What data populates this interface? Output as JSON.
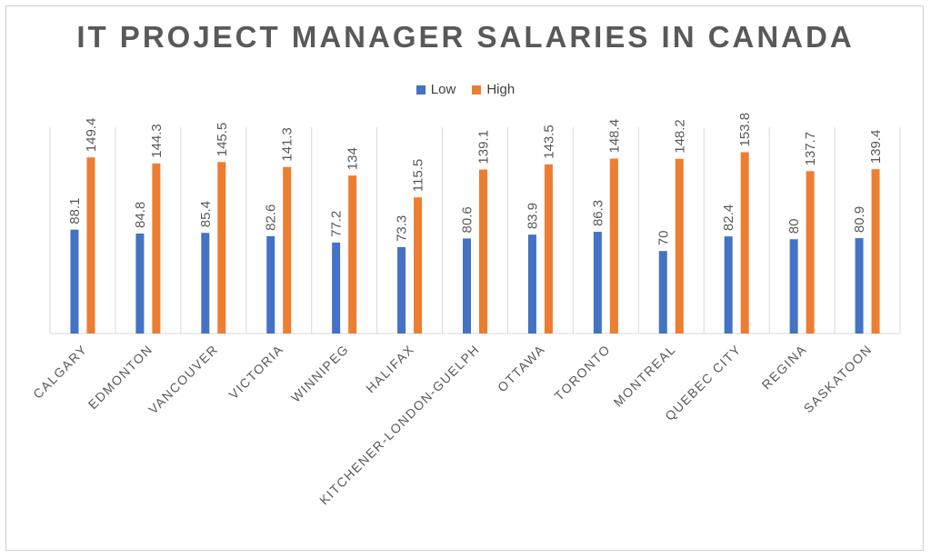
{
  "colors": {
    "low": "#4472C4",
    "high": "#ED7D31",
    "grid": "#d9d9d9",
    "text": "#595959"
  },
  "chart_data": {
    "type": "bar",
    "title": "IT PROJECT MANAGER SALARIES IN CANADA",
    "xlabel": "",
    "ylabel": "",
    "legend_position": "top",
    "grid": "vertical category separators",
    "ylim": [
      0,
      175
    ],
    "categories": [
      "CALGARY",
      "EDMONTON",
      "VANCOUVER",
      "VICTORIA",
      "WINNIPEG",
      "HALIFAX",
      "KITCHENER-LONDON-GUELPH",
      "OTTAWA",
      "TORONTO",
      "MONTREAL",
      "QUEBEC CITY",
      "REGINA",
      "SASKATOON"
    ],
    "series": [
      {
        "name": "Low",
        "color": "#4472C4",
        "values": [
          88.1,
          84.8,
          85.4,
          82.6,
          77.2,
          73.3,
          80.6,
          83.9,
          86.3,
          70,
          82.4,
          80,
          80.9
        ],
        "labels": [
          "88.1",
          "84.8",
          "85.4",
          "82.6",
          "77.2",
          "73.3",
          "80.6",
          "83.9",
          "86.3",
          "70",
          "82.4",
          "80",
          "80.9"
        ]
      },
      {
        "name": "High",
        "color": "#ED7D31",
        "values": [
          149.4,
          144.3,
          145.5,
          141.3,
          134,
          115.5,
          139.1,
          143.5,
          148.4,
          148.2,
          153.8,
          137.7,
          139.4
        ],
        "labels": [
          "149.4",
          "144.3",
          "145.5",
          "141.3",
          "134",
          "115.5",
          "139.1",
          "143.5",
          "148.4",
          "148.2",
          "153.8",
          "137.7",
          "139.4"
        ]
      }
    ]
  }
}
